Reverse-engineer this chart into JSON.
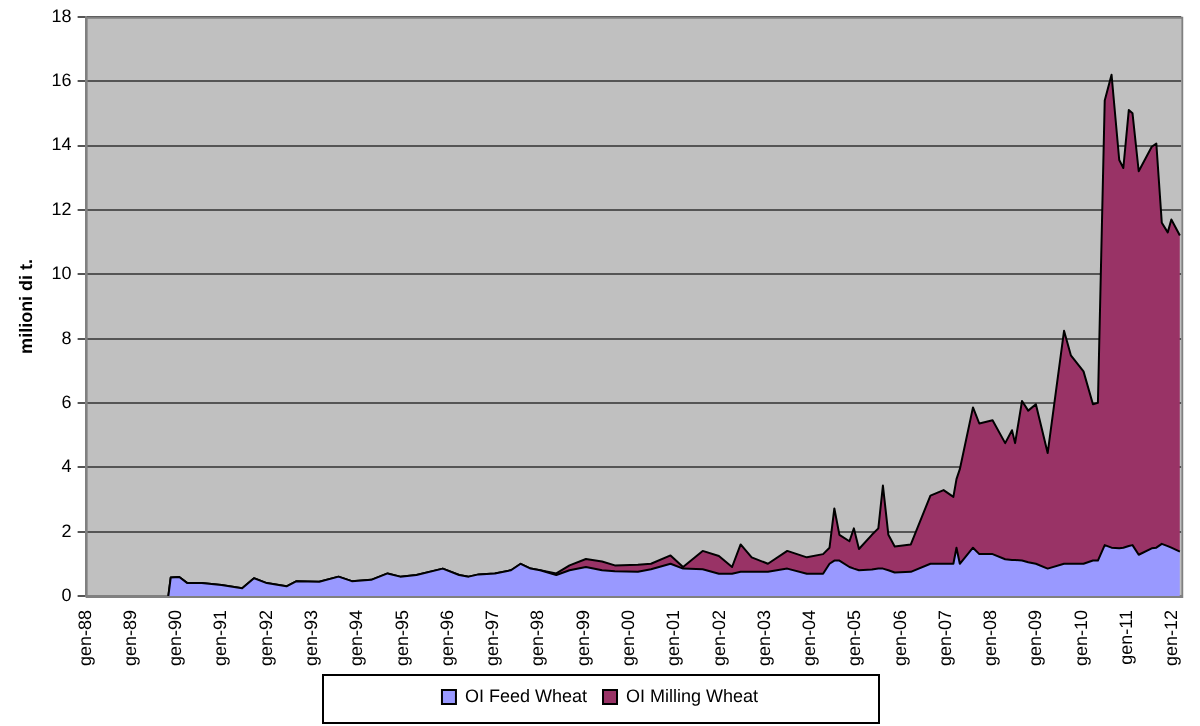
{
  "chart_data": {
    "type": "area",
    "stacked": true,
    "ylabel": "milioni di t.",
    "x": [
      "1989-10-30",
      "1989-11-18",
      "1990-01-26",
      "1990-04-01",
      "1990-07-26",
      "1991-01-01",
      "1991-06-17",
      "1991-09-20",
      "1992-01-01",
      "1992-04-08",
      "1992-06-09",
      "1992-08-29",
      "1993-02-28",
      "1993-08-03",
      "1993-11-18",
      "1994-04-23",
      "1994-09-02",
      "1994-12-13",
      "1995-04-23",
      "1995-11-21",
      "1996-04-01",
      "1996-06-17",
      "1996-09-06",
      "1997-01-15",
      "1997-05-25",
      "1997-08-11",
      "1997-10-30",
      "1998-01-15",
      "1998-05-25",
      "1998-09-09",
      "1999-01-19",
      "1999-05-29",
      "1999-09-09",
      "2000-03-13",
      "2000-06-27",
      "2000-12-02",
      "2001-03-13",
      "2001-08-18",
      "2001-12-27",
      "2002-04-12",
      "2002-06-20",
      "2002-09-17",
      "2003-01-26",
      "2003-07-01",
      "2003-12-06",
      "2004-04-15",
      "2004-06-06",
      "2004-07-15",
      "2004-08-25",
      "2004-11-14",
      "2004-12-20",
      "2005-01-30",
      "2005-05-14",
      "2005-07-05",
      "2005-08-11",
      "2005-09-24",
      "2005-11-14",
      "2006-03-24",
      "2006-08-29",
      "2006-12-13",
      "2007-03-02",
      "2007-03-27",
      "2007-04-23",
      "2007-08-07",
      "2007-09-27",
      "2008-01-12",
      "2008-04-23",
      "2008-06-17",
      "2008-07-12",
      "2008-09-06",
      "2008-10-26",
      "2008-12-27",
      "2009-04-01",
      "2009-08-11",
      "2009-10-05",
      "2010-01-15",
      "2010-04-01",
      "2010-05-11",
      "2010-07-05",
      "2010-08-29",
      "2010-10-30",
      "2010-12-02",
      "2011-01-15",
      "2011-02-14",
      "2011-04-05",
      "2011-07-19",
      "2011-08-25",
      "2011-10-08",
      "2011-11-25",
      "2011-12-24",
      "2012-03-02"
    ],
    "series": [
      {
        "name": "OI Feed Wheat",
        "color": "#9999ff",
        "values": [
          0,
          0.57,
          0.59,
          0.4,
          0.4,
          0.34,
          0.24,
          0.55,
          0.4,
          0.34,
          0.3,
          0.46,
          0.44,
          0.6,
          0.46,
          0.5,
          0.7,
          0.6,
          0.65,
          0.85,
          0.65,
          0.6,
          0.67,
          0.7,
          0.8,
          1.0,
          0.85,
          0.8,
          0.65,
          0.8,
          0.9,
          0.8,
          0.77,
          0.75,
          0.83,
          1.0,
          0.85,
          0.83,
          0.69,
          0.69,
          0.75,
          0.75,
          0.75,
          0.85,
          0.69,
          0.69,
          1.0,
          1.1,
          1.1,
          0.9,
          0.85,
          0.8,
          0.82,
          0.85,
          0.85,
          0.8,
          0.73,
          0.75,
          1.0,
          1.0,
          1.0,
          1.5,
          1.0,
          1.5,
          1.3,
          1.3,
          1.14,
          1.12,
          1.12,
          1.1,
          1.05,
          1.0,
          0.85,
          1.0,
          1.0,
          1.0,
          1.1,
          1.1,
          1.58,
          1.5,
          1.48,
          1.5,
          1.55,
          1.58,
          1.28,
          1.48,
          1.5,
          1.62,
          1.55,
          1.5,
          1.38
        ]
      },
      {
        "name": "OI Milling Wheat",
        "color": "#993366",
        "values": [
          0,
          0,
          0,
          0,
          0,
          0,
          0,
          0,
          0,
          0,
          0,
          0,
          0,
          0,
          0,
          0,
          0,
          0,
          0,
          0,
          0,
          0,
          0,
          0,
          0,
          0,
          0,
          0,
          0.05,
          0.15,
          0.25,
          0.27,
          0.18,
          0.22,
          0.17,
          0.26,
          0.05,
          0.57,
          0.55,
          0.21,
          0.85,
          0.45,
          0.25,
          0.55,
          0.51,
          0.61,
          0.5,
          1.62,
          0.8,
          0.8,
          1.25,
          0.66,
          1.08,
          1.25,
          2.58,
          1.1,
          0.81,
          0.85,
          2.12,
          2.29,
          2.08,
          2.13,
          2.94,
          4.36,
          4.06,
          4.16,
          3.61,
          4.03,
          3.63,
          4.96,
          4.71,
          4.96,
          3.59,
          7.24,
          6.48,
          5.98,
          4.86,
          4.9,
          13.82,
          14.7,
          12.07,
          11.8,
          13.55,
          13.42,
          11.92,
          12.48,
          12.56,
          9.98,
          9.75,
          10.2,
          9.82
        ]
      }
    ],
    "xlim": [
      "1988-01-01",
      "2012-03-13"
    ],
    "xticks": [
      {
        "value": "1988-01",
        "label": "gen-88"
      },
      {
        "value": "1989-01",
        "label": "gen-89"
      },
      {
        "value": "1990-01",
        "label": "gen-90"
      },
      {
        "value": "1991-01",
        "label": "gen-91"
      },
      {
        "value": "1992-01",
        "label": "gen-92"
      },
      {
        "value": "1993-01",
        "label": "gen-93"
      },
      {
        "value": "1994-01",
        "label": "gen-94"
      },
      {
        "value": "1995-01",
        "label": "gen-95"
      },
      {
        "value": "1996-01",
        "label": "gen-96"
      },
      {
        "value": "1997-01",
        "label": "gen-97"
      },
      {
        "value": "1998-01",
        "label": "gen-98"
      },
      {
        "value": "1999-01",
        "label": "gen-99"
      },
      {
        "value": "2000-01",
        "label": "gen-00"
      },
      {
        "value": "2001-01",
        "label": "gen-01"
      },
      {
        "value": "2002-01",
        "label": "gen-02"
      },
      {
        "value": "2003-01",
        "label": "gen-03"
      },
      {
        "value": "2004-01",
        "label": "gen-04"
      },
      {
        "value": "2005-01",
        "label": "gen-05"
      },
      {
        "value": "2006-01",
        "label": "gen-06"
      },
      {
        "value": "2007-01",
        "label": "gen-07"
      },
      {
        "value": "2008-01",
        "label": "gen-08"
      },
      {
        "value": "2009-01",
        "label": "gen-09"
      },
      {
        "value": "2010-01",
        "label": "gen-10"
      },
      {
        "value": "2011-01",
        "label": "gen-11"
      },
      {
        "value": "2012-01",
        "label": "gen-12"
      }
    ],
    "ylim": [
      0,
      18
    ],
    "yticks": [
      0,
      2,
      4,
      6,
      8,
      10,
      12,
      14,
      16,
      18
    ],
    "grid": "y",
    "legend": "bottom",
    "marker": "none",
    "line_style": "solid"
  }
}
